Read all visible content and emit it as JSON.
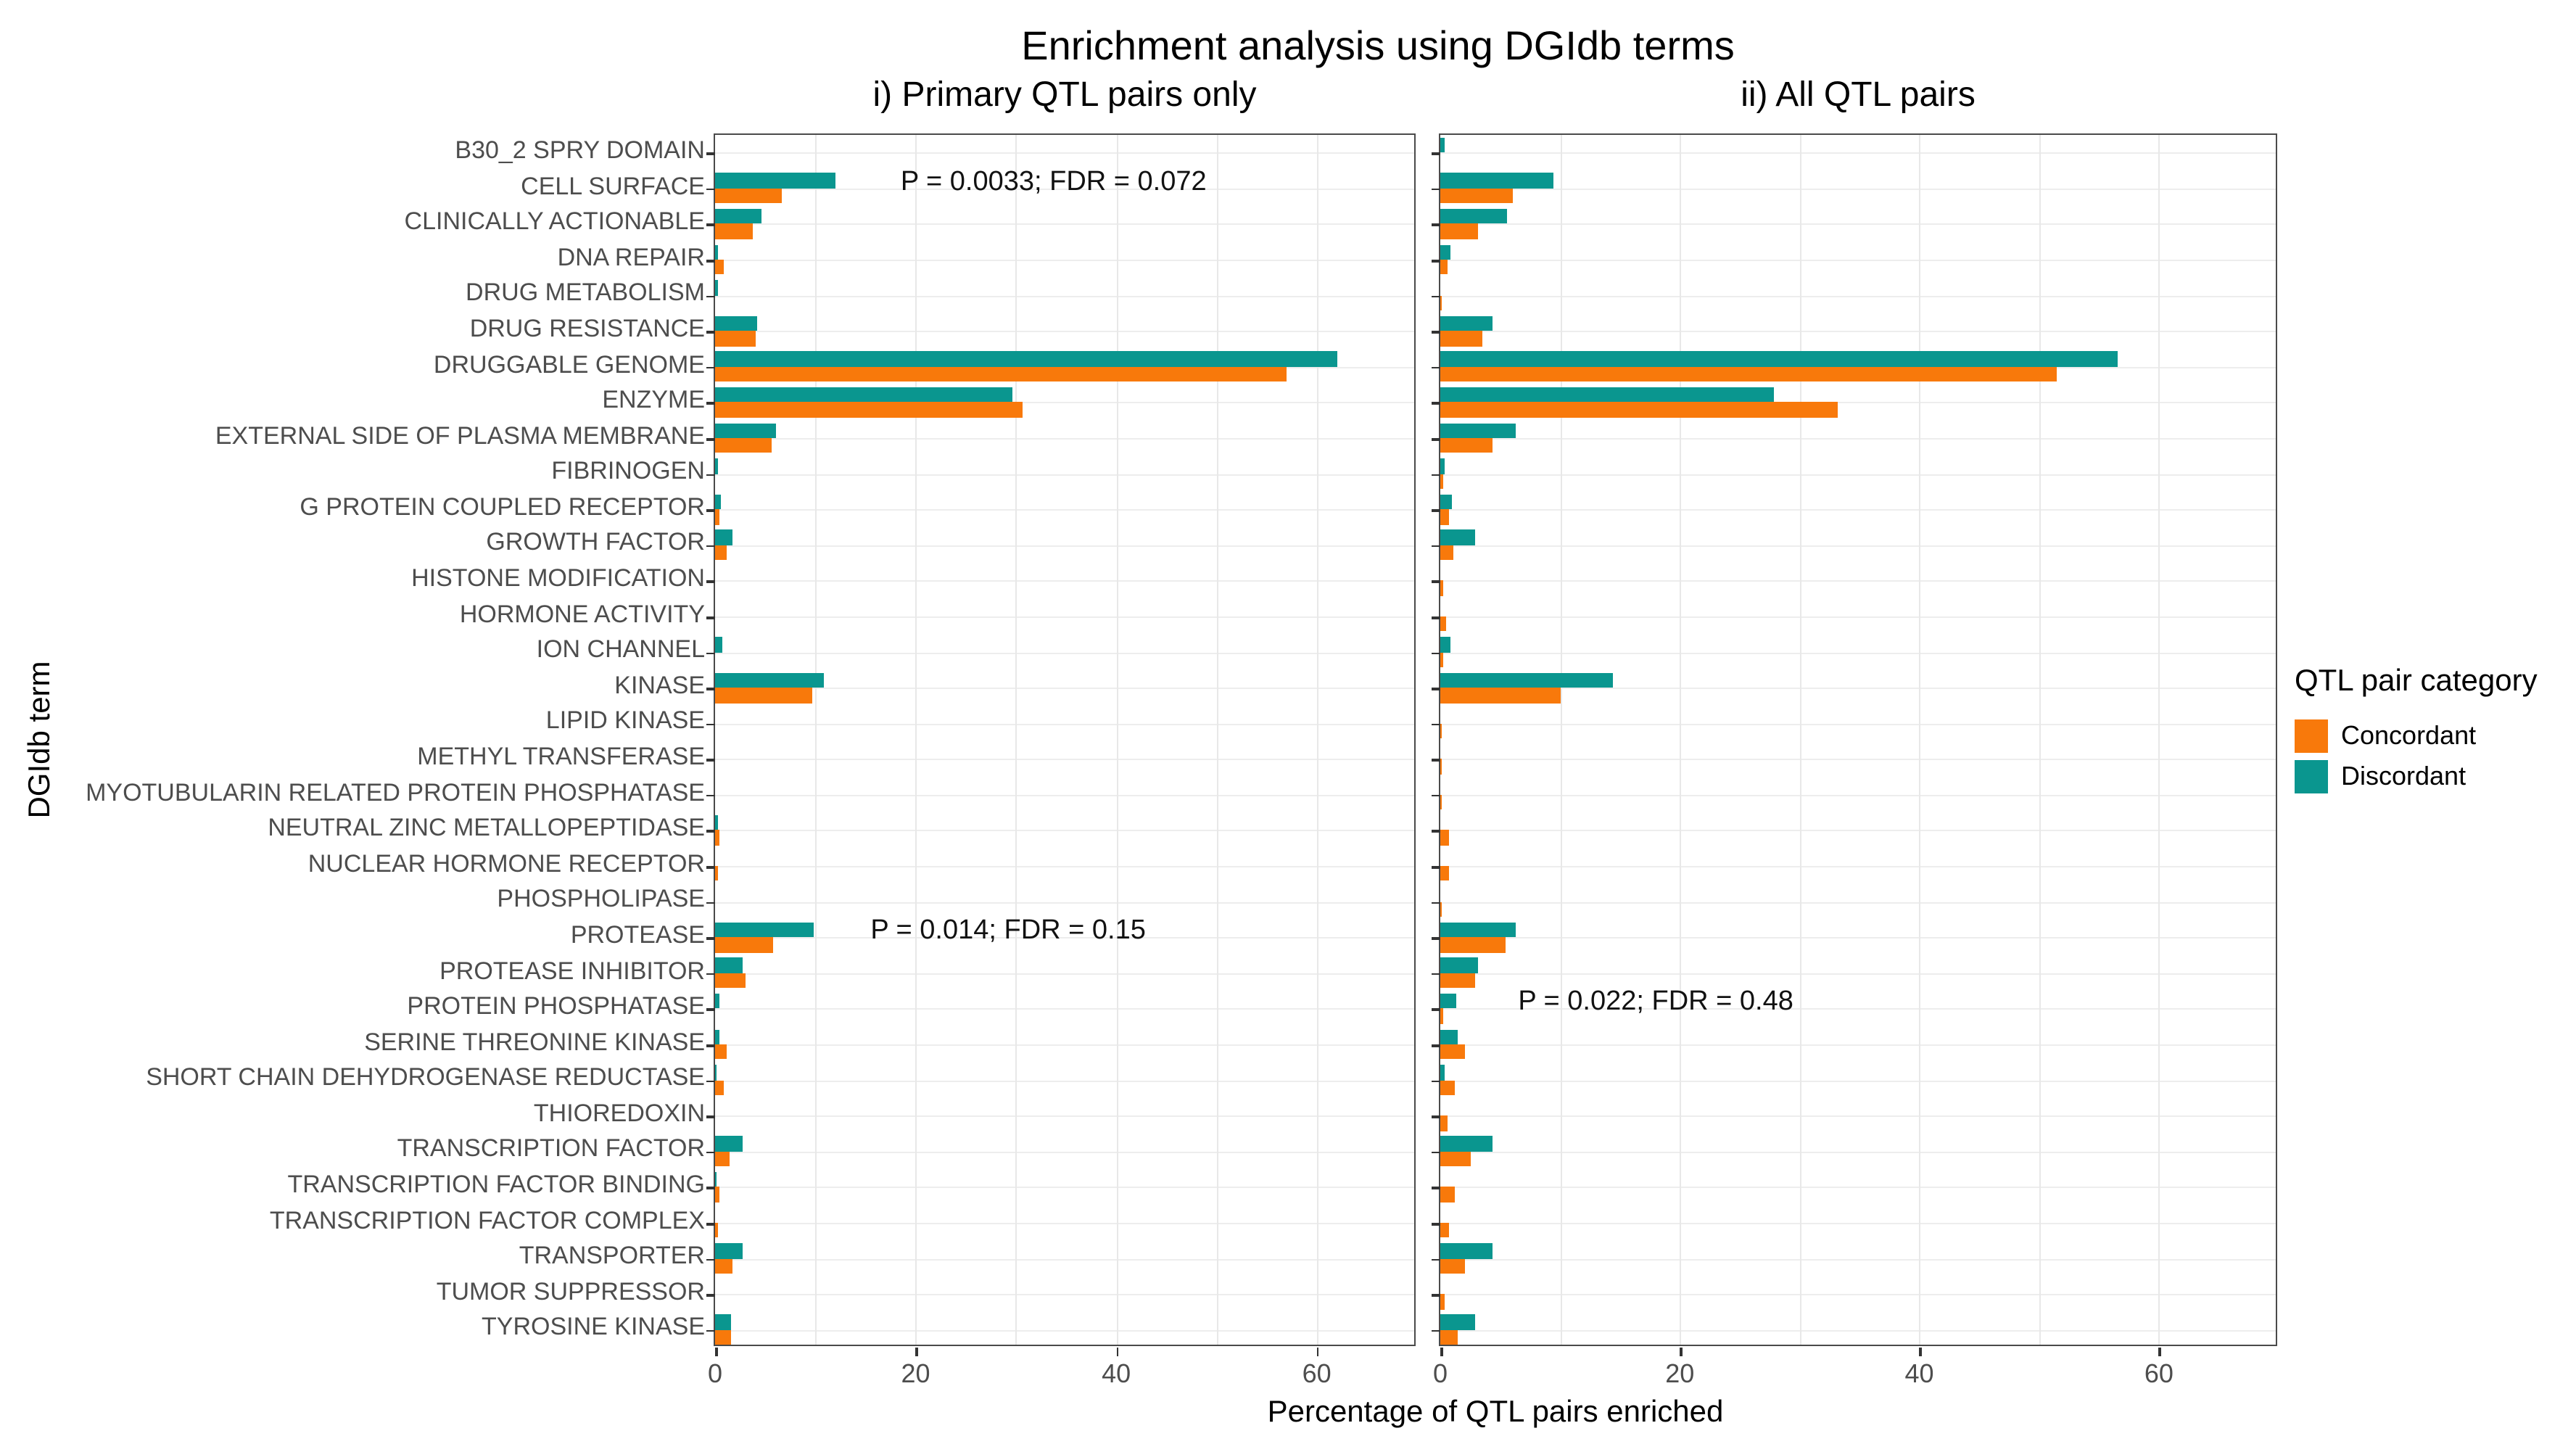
{
  "title": "Enrichment analysis using DGIdb terms",
  "axes": {
    "x_label": "Percentage of QTL pairs enriched",
    "y_label": "DGIdb term",
    "x_ticks": [
      0,
      20,
      40,
      60
    ],
    "x_max": 70,
    "gridline_step": 10
  },
  "legend": {
    "title": "QTL pair category",
    "items": [
      {
        "label": "Concordant",
        "color": "#F8790B"
      },
      {
        "label": "Discordant",
        "color": "#0A968F"
      }
    ]
  },
  "chart_data": {
    "type": "bar",
    "orientation": "horizontal",
    "xlabel": "Percentage of QTL pairs enriched",
    "ylabel": "DGIdb term",
    "xlim": [
      0,
      70
    ],
    "grid": "on",
    "legend_position": "right",
    "categories": [
      "B30_2 SPRY DOMAIN",
      "CELL SURFACE",
      "CLINICALLY ACTIONABLE",
      "DNA REPAIR",
      "DRUG METABOLISM",
      "DRUG RESISTANCE",
      "DRUGGABLE GENOME",
      "ENZYME",
      "EXTERNAL SIDE OF PLASMA MEMBRANE",
      "FIBRINOGEN",
      "G PROTEIN COUPLED RECEPTOR",
      "GROWTH FACTOR",
      "HISTONE MODIFICATION",
      "HORMONE ACTIVITY",
      "ION CHANNEL",
      "KINASE",
      "LIPID KINASE",
      "METHYL TRANSFERASE",
      "MYOTUBULARIN RELATED PROTEIN PHOSPHATASE",
      "NEUTRAL ZINC METALLOPEPTIDASE",
      "NUCLEAR HORMONE RECEPTOR",
      "PHOSPHOLIPASE",
      "PROTEASE",
      "PROTEASE INHIBITOR",
      "PROTEIN PHOSPHATASE",
      "SERINE THREONINE KINASE",
      "SHORT CHAIN DEHYDROGENASE REDUCTASE",
      "THIOREDOXIN",
      "TRANSCRIPTION FACTOR",
      "TRANSCRIPTION FACTOR BINDING",
      "TRANSCRIPTION FACTOR COMPLEX",
      "TRANSPORTER",
      "TUMOR SUPPRESSOR",
      "TYROSINE KINASE"
    ],
    "panels": [
      {
        "title": "i) Primary QTL pairs only",
        "series": [
          {
            "name": "Concordant",
            "values": [
              0,
              6.7,
              3.7,
              0.8,
              0,
              4.0,
              57,
              30.6,
              5.6,
              0,
              0.45,
              1.1,
              0,
              0,
              0,
              9.7,
              0,
              0,
              0,
              0.45,
              0.3,
              0,
              5.8,
              3.1,
              0,
              1.2,
              0.9,
              0,
              1.5,
              0.5,
              0.3,
              1.8,
              0,
              1.55
            ]
          },
          {
            "name": "Discordant",
            "values": [
              0,
              12,
              4.7,
              0.35,
              0.35,
              4.2,
              62,
              29.7,
              6.1,
              0.3,
              0.65,
              1.7,
              0,
              0,
              0.7,
              10.8,
              0,
              0,
              0,
              0.3,
              0,
              0,
              9.8,
              2.7,
              0.5,
              0.5,
              0.2,
              0,
              2.7,
              0.2,
              0,
              2.8,
              0,
              1.55
            ]
          }
        ],
        "annotations": [
          {
            "text": "P = 0.0033; FDR = 0.072",
            "category": "CELL SURFACE",
            "x": 18.5
          },
          {
            "text": "P = 0.014; FDR = 0.15",
            "category": "PROTEASE",
            "x": 15.5
          }
        ]
      },
      {
        "title": "ii) All QTL pairs",
        "series": [
          {
            "name": "Concordant",
            "values": [
              0,
              6.1,
              3.1,
              0.6,
              0.15,
              3.5,
              51.5,
              33.2,
              4.3,
              0.25,
              0.7,
              1.1,
              0.2,
              0.5,
              0.2,
              10,
              0.15,
              0.15,
              0.15,
              0.7,
              0.7,
              0.15,
              5.4,
              2.9,
              0.2,
              2.1,
              1.25,
              0.55,
              2.6,
              1.2,
              0.7,
              2.1,
              0.35,
              1.5
            ]
          },
          {
            "name": "Discordant",
            "values": [
              0.4,
              9.5,
              5.6,
              0.9,
              0,
              4.3,
              56.5,
              27.9,
              6.3,
              0.4,
              1.0,
              2.9,
              0,
              0,
              0.9,
              14.4,
              0,
              0,
              0,
              0,
              0,
              0,
              6.3,
              3.2,
              1.3,
              1.4,
              0.4,
              0,
              4.3,
              0,
              0,
              4.3,
              0,
              2.9
            ]
          }
        ],
        "annotations": [
          {
            "text": "P = 0.022; FDR = 0.48",
            "category": "PROTEIN PHOSPHATASE",
            "x": 6.5
          }
        ]
      }
    ]
  }
}
